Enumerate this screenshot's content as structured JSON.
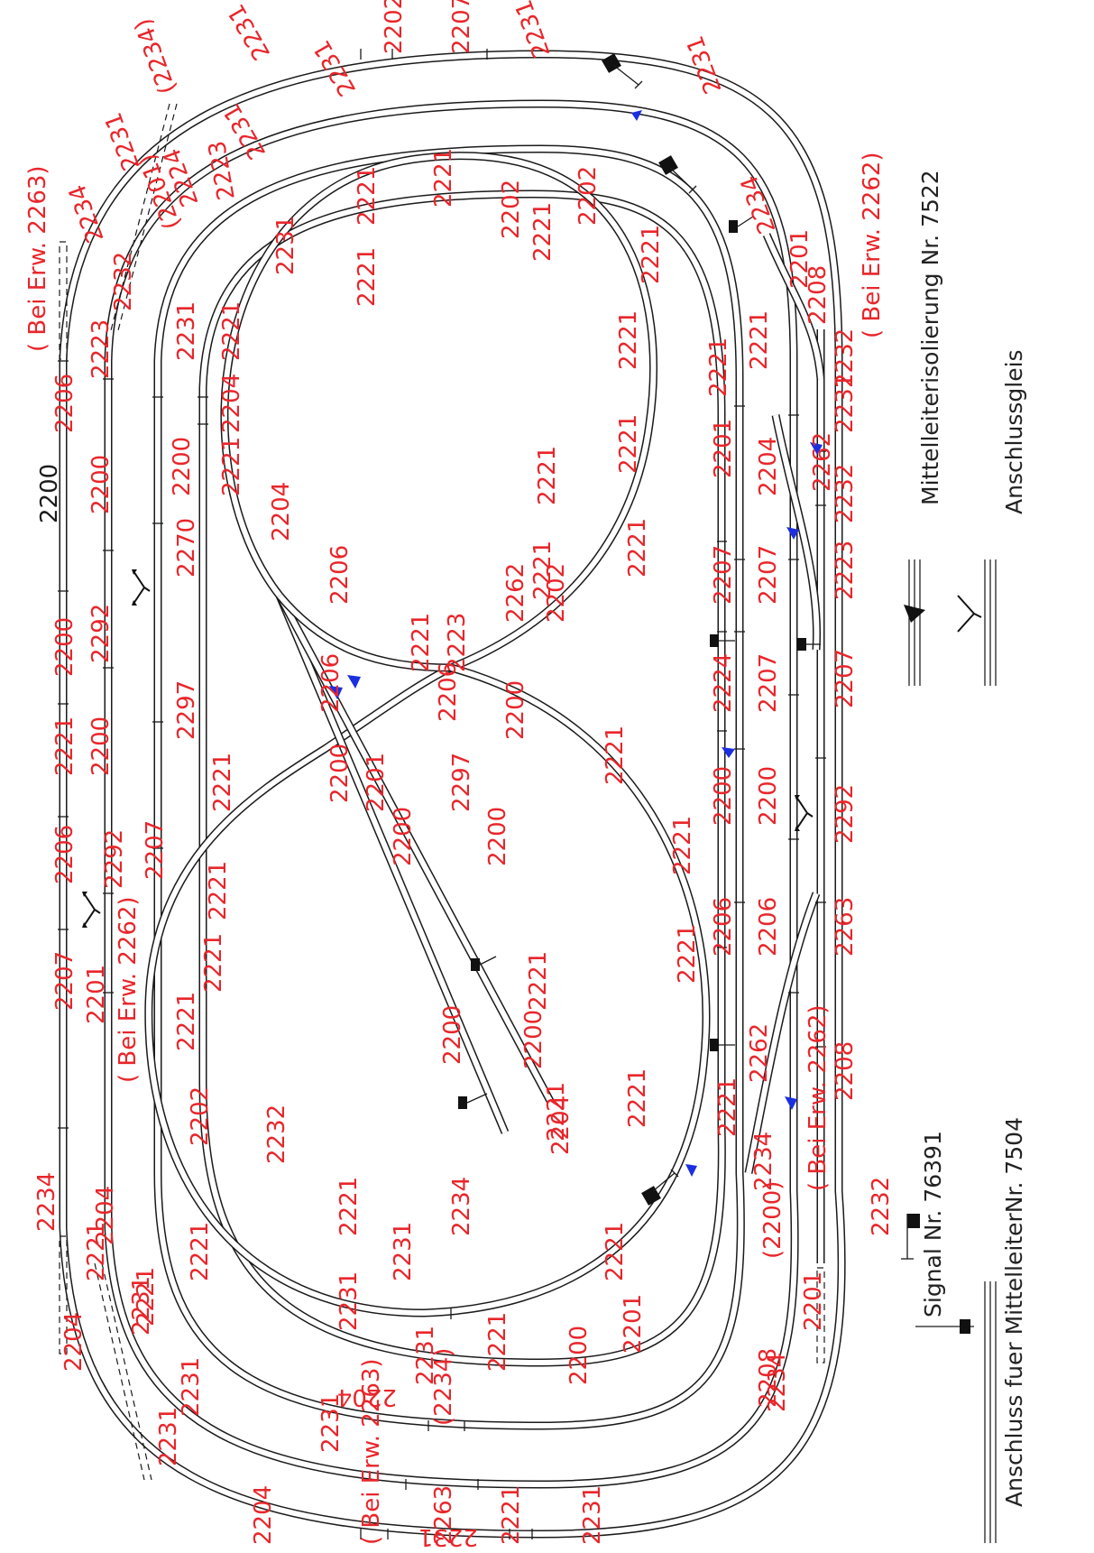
{
  "legend": {
    "signal_76391": "Signal Nr. 76391",
    "connector": "Anschluss fuer MittelleiterNr. 7504",
    "isolation": "Mittelleiterisolierung Nr. 7522",
    "siding": "Anschlussgleis"
  },
  "track_labels": [
    {
      "t": "2202"
    },
    {
      "t": "2207"
    },
    {
      "t": "2231"
    },
    {
      "t": "2231"
    },
    {
      "t": "(2234)"
    },
    {
      "t": "2231"
    },
    {
      "t": "2231"
    },
    {
      "t": "2231"
    },
    {
      "t": "2231"
    },
    {
      "t": "2234"
    },
    {
      "t": "(2201)"
    },
    {
      "t": "2224"
    },
    {
      "t": "2223"
    },
    {
      "t": "2221"
    },
    {
      "t": "2221"
    },
    {
      "t": "2202"
    },
    {
      "t": "2202"
    },
    {
      "t": "2221"
    },
    {
      "t": "2221"
    },
    {
      "t": "2234"
    },
    {
      "t": "2201"
    },
    {
      "t": "2208"
    },
    {
      "t": "( Bei Erw.  2262)"
    },
    {
      "t": "( Bei Erw.  2263)"
    },
    {
      "t": "2232"
    },
    {
      "t": "2232"
    },
    {
      "t": "2223"
    },
    {
      "t": "2206"
    },
    {
      "t": "2200"
    },
    {
      "t": "2231"
    },
    {
      "t": "2221"
    },
    {
      "t": "2204"
    },
    {
      "t": "2200"
    },
    {
      "t": "2221"
    },
    {
      "t": "2221"
    },
    {
      "t": "2221"
    },
    {
      "t": "2221"
    },
    {
      "t": "2231"
    },
    {
      "t": "2221"
    },
    {
      "t": "2221"
    },
    {
      "t": "2221"
    },
    {
      "t": "2221"
    },
    {
      "t": "2221"
    },
    {
      "t": "2231"
    },
    {
      "t": "2232"
    },
    {
      "t": "2204"
    },
    {
      "t": "2262"
    },
    {
      "t": "2201"
    },
    {
      "t": "2204"
    },
    {
      "t": "2206"
    },
    {
      "t": "2223"
    },
    {
      "t": "2270"
    },
    {
      "t": "2292"
    },
    {
      "t": "2200"
    },
    {
      "t": "2207"
    },
    {
      "t": "2207"
    },
    {
      "t": "2262"
    },
    {
      "t": "2202"
    },
    {
      "t": "2221"
    },
    {
      "t": "2223"
    },
    {
      "t": "2224"
    },
    {
      "t": "2207"
    },
    {
      "t": "2207"
    },
    {
      "t": "2206"
    },
    {
      "t": "2297"
    },
    {
      "t": "2200"
    },
    {
      "t": "2221"
    },
    {
      "t": "2206"
    },
    {
      "t": "2200"
    },
    {
      "t": "2200"
    },
    {
      "t": "2201"
    },
    {
      "t": "2297"
    },
    {
      "t": "2221"
    },
    {
      "t": "2200"
    },
    {
      "t": "2200"
    },
    {
      "t": "2292"
    },
    {
      "t": "2221"
    },
    {
      "t": "2207"
    },
    {
      "t": "2221"
    },
    {
      "t": "2206"
    },
    {
      "t": "2292"
    },
    {
      "t": "2200"
    },
    {
      "t": "2200"
    },
    {
      "t": "2221"
    },
    {
      "t": "2206"
    },
    {
      "t": "2206"
    },
    {
      "t": "2263"
    },
    {
      "t": "2221"
    },
    {
      "t": "( Bei Erw.  2262)"
    },
    {
      "t": "2221"
    },
    {
      "t": "2201"
    },
    {
      "t": "2207"
    },
    {
      "t": "2200"
    },
    {
      "t": "2221"
    },
    {
      "t": "2200"
    },
    {
      "t": "2221"
    },
    {
      "t": "2262"
    },
    {
      "t": "2208"
    },
    {
      "t": "2234"
    },
    {
      "t": "2221"
    },
    {
      "t": "2221"
    },
    {
      "t": "2204"
    },
    {
      "t": "2221"
    },
    {
      "t": "2202"
    },
    {
      "t": "2232"
    },
    {
      "t": "( Bei Erw.  2262)"
    },
    {
      "t": "2232"
    },
    {
      "t": "2234"
    },
    {
      "t": "2204"
    },
    {
      "t": "(2200)"
    },
    {
      "t": "2221"
    },
    {
      "t": "2221"
    },
    {
      "t": "2221"
    },
    {
      "t": "2234"
    },
    {
      "t": "2221"
    },
    {
      "t": "2221"
    },
    {
      "t": "2234"
    },
    {
      "t": "2231"
    },
    {
      "t": "2231"
    },
    {
      "t": "2201"
    },
    {
      "t": "2204"
    },
    {
      "t": "2221"
    },
    {
      "t": "2201"
    },
    {
      "t": "2231"
    },
    {
      "t": "(2234)"
    },
    {
      "t": "2231"
    },
    {
      "t": "2204"
    },
    {
      "t": "2231"
    },
    {
      "t": "2231"
    },
    {
      "t": "2231"
    },
    {
      "t": "2231"
    },
    {
      "t": "2204"
    },
    {
      "t": "2200"
    },
    {
      "t": "2208"
    },
    {
      "t": "2231"
    },
    {
      "t": "( Bei Erw.  2263)"
    },
    {
      "t": "2263"
    },
    {
      "t": "2221"
    }
  ],
  "black_labels": [
    {
      "t": "2200"
    }
  ],
  "isolation_marks": 12,
  "signals": 9
}
